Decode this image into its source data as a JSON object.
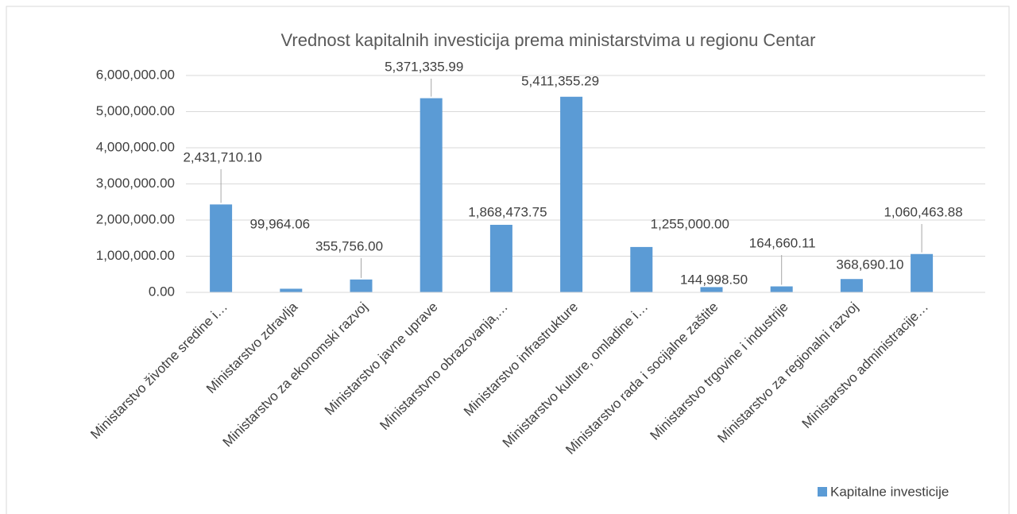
{
  "chart_data": {
    "type": "bar",
    "title": "Vrednost kapitalnih investicija prema ministarstvima u regionu Centar",
    "categories": [
      "Ministarstvo životne sredine i…",
      "Ministarstvo zdravlja",
      "Ministarstvo za ekonomski razvoj",
      "Ministarstvo javne uprave",
      "Ministarstvno obrazovanja,…",
      "Ministarstvo infrastrukture",
      "Ministarstvo kulture, omladine i…",
      "Ministarstvo rada i socijalne zaštite",
      "Ministarstvo trgovine i industrije",
      "Ministarstvo za regionalni razvoj",
      "Ministarstvo administracije…"
    ],
    "series": [
      {
        "name": "Kapitalne investicije",
        "color": "#5b9bd5",
        "values": [
          2431710.1,
          99964.06,
          355756.0,
          5371335.99,
          1868473.75,
          5411355.29,
          1255000.0,
          144998.5,
          164660.11,
          368690.1,
          1060463.88
        ],
        "value_labels": [
          "2,431,710.10",
          "99,964.06",
          "355,756.00",
          "5,371,335.99",
          "1,868,473.75",
          "5,411,355.29",
          "1,255,000.00",
          "144,998.50",
          "164,660.11",
          "368,690.10",
          "1,060,463.88"
        ]
      }
    ],
    "ylim": [
      0,
      6000000
    ],
    "yticks": [
      {
        "value": 0,
        "label": "0.00"
      },
      {
        "value": 1000000,
        "label": "1,000,000.00"
      },
      {
        "value": 2000000,
        "label": "2,000,000.00"
      },
      {
        "value": 3000000,
        "label": "3,000,000.00"
      },
      {
        "value": 4000000,
        "label": "4,000,000.00"
      },
      {
        "value": 5000000,
        "label": "5,000,000.00"
      },
      {
        "value": 6000000,
        "label": "6,000,000.00"
      }
    ],
    "grid": true,
    "legend": "bottom-right"
  }
}
